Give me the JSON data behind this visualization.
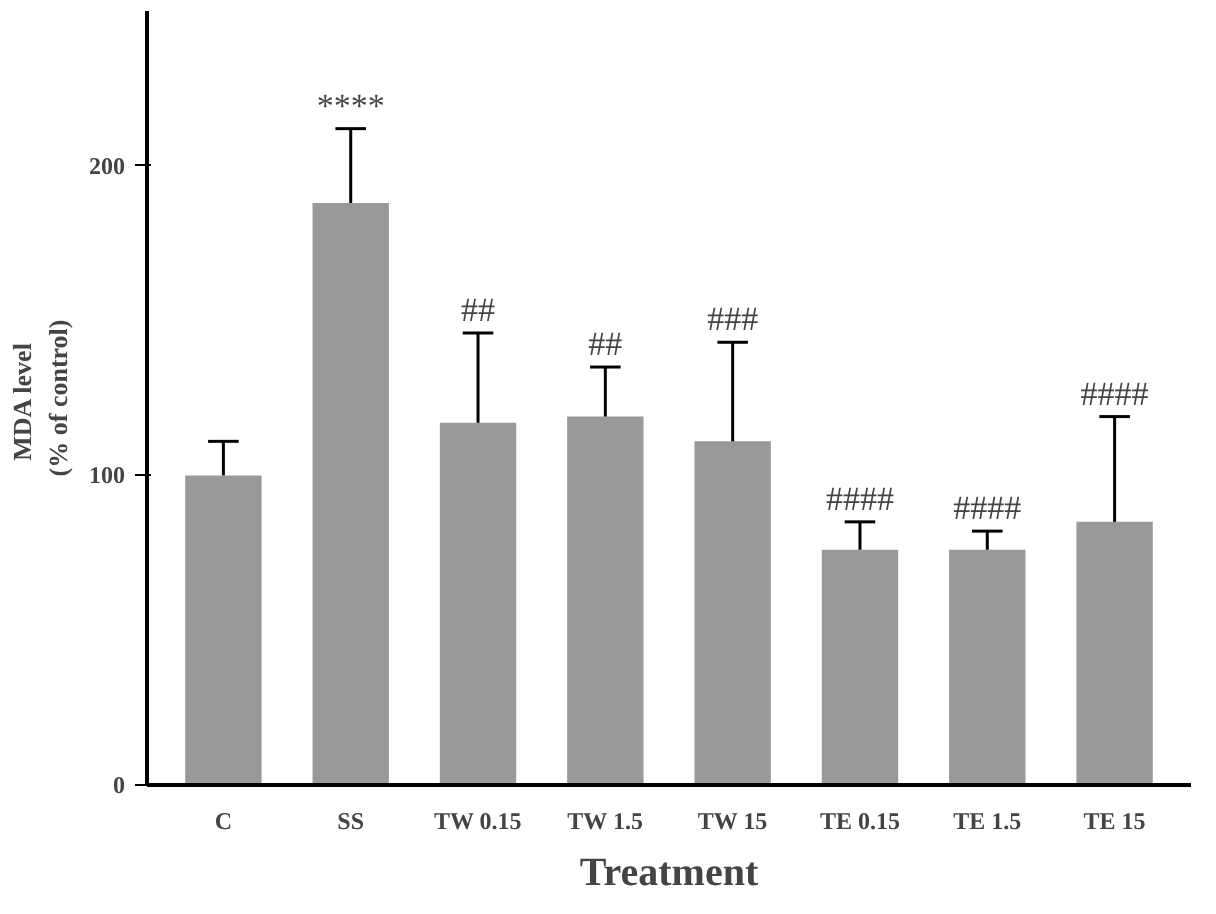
{
  "chart_data": {
    "type": "bar",
    "xlabel": "Treatment",
    "ylabel": "MDA  level\n(% of control)",
    "categories": [
      "C",
      "SS",
      "TW 0.15",
      "TW 1.5",
      "TW 15",
      "TE 0.15",
      "TE 1.5",
      "TE 15"
    ],
    "values": [
      100,
      188,
      117,
      119,
      111,
      76,
      76,
      85
    ],
    "errors": [
      [
        100,
        111
      ],
      [
        188,
        212
      ],
      [
        117,
        146
      ],
      [
        119,
        135
      ],
      [
        111,
        143
      ],
      [
        76,
        85
      ],
      [
        76,
        82
      ],
      [
        85,
        119
      ]
    ],
    "color": "#999999",
    "ylim": [
      0,
      250
    ],
    "yticks": [
      0,
      100,
      200
    ],
    "grid": false,
    "annotations": [
      {
        "text": "****",
        "x": "SS",
        "y": 212
      },
      {
        "text": "##",
        "x": "TW 0.15",
        "y": 146
      },
      {
        "text": "##",
        "x": "TW 1.5",
        "y": 135
      },
      {
        "text": "###",
        "x": "TW 15",
        "y": 143
      },
      {
        "text": "####",
        "x": "TE 0.15",
        "y": 85
      },
      {
        "text": "####",
        "x": "TE 1.5",
        "y": 82
      },
      {
        "text": "####",
        "x": "TE 15",
        "y": 119
      }
    ]
  }
}
